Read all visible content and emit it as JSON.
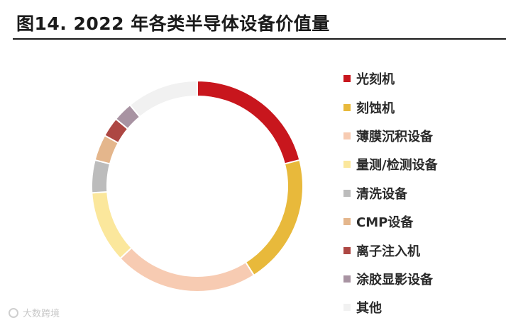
{
  "title": "图14. 2022 年各类半导体设备价值量",
  "watermark": {
    "text": "大数跨境",
    "icon": "brand-logo-icon"
  },
  "chart_data": {
    "type": "pie",
    "style": "donut",
    "title": "图14. 2022 年各类半导体设备价值量",
    "legend_position": "right",
    "series": [
      {
        "name": "光刻机",
        "value": 0.21,
        "color": "#c8161d"
      },
      {
        "name": "刻蚀机",
        "value": 0.2,
        "color": "#e8b93b"
      },
      {
        "name": "薄膜沉积设备",
        "value": 0.22,
        "color": "#f7cbb2"
      },
      {
        "name": "量测/检测设备",
        "value": 0.11,
        "color": "#fbe79c"
      },
      {
        "name": "清洗设备",
        "value": 0.05,
        "color": "#bcbcbc"
      },
      {
        "name": "CMP设备",
        "value": 0.04,
        "color": "#e4b68c"
      },
      {
        "name": "离子注入机",
        "value": 0.03,
        "color": "#ad4743"
      },
      {
        "name": "涂胶显影设备",
        "value": 0.03,
        "color": "#a893a2"
      },
      {
        "name": "其他",
        "value": 0.11,
        "color": "#f1f1f1"
      }
    ]
  }
}
